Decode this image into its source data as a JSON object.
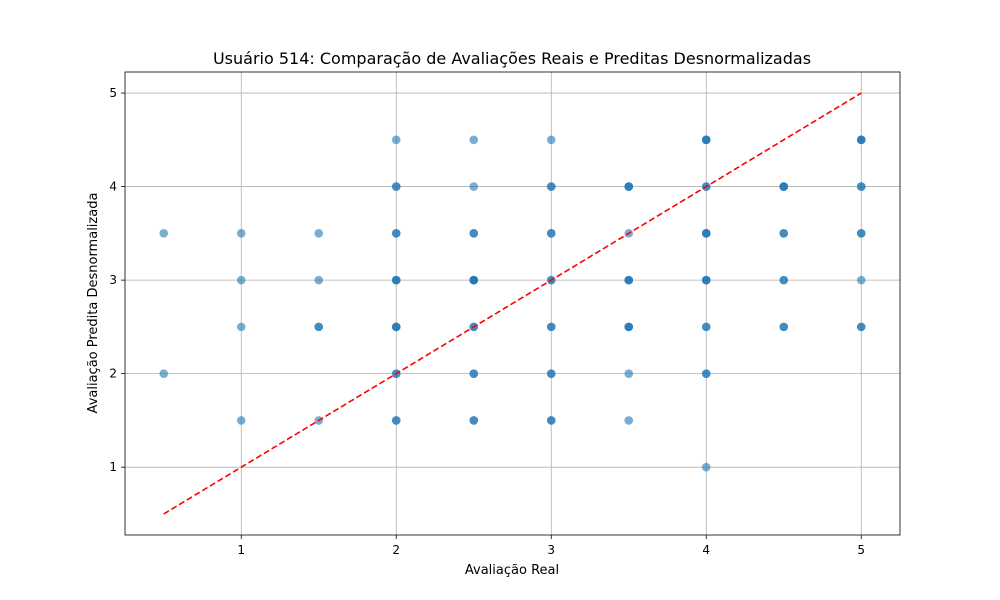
{
  "chart_data": {
    "type": "scatter",
    "title": "Usuário 514: Comparação de Avaliações Reais e Preditas Desnormalizadas",
    "xlabel": "Avaliação Real",
    "ylabel": "Avaliação Predita Desnormalizada",
    "xlim": [
      0.25,
      5.25
    ],
    "ylim": [
      0.275,
      5.225
    ],
    "xticks": [
      1,
      2,
      3,
      4,
      5
    ],
    "yticks": [
      1,
      2,
      3,
      4,
      5
    ],
    "grid": true,
    "colors": {
      "points": "#1f77b4",
      "reference_line": "#ff0000"
    },
    "reference_line": {
      "style": "dashed",
      "x": [
        0.5,
        5
      ],
      "y": [
        0.5,
        5
      ]
    },
    "points": [
      {
        "x": 0.5,
        "y": 3.5
      },
      {
        "x": 0.5,
        "y": 2.0
      },
      {
        "x": 1.0,
        "y": 3.5
      },
      {
        "x": 1.0,
        "y": 3.0
      },
      {
        "x": 1.0,
        "y": 2.5
      },
      {
        "x": 1.0,
        "y": 1.5
      },
      {
        "x": 1.5,
        "y": 3.5
      },
      {
        "x": 1.5,
        "y": 3.0
      },
      {
        "x": 1.5,
        "y": 2.5
      },
      {
        "x": 1.5,
        "y": 2.5
      },
      {
        "x": 1.5,
        "y": 1.5
      },
      {
        "x": 2.0,
        "y": 4.5
      },
      {
        "x": 2.0,
        "y": 4.0
      },
      {
        "x": 2.0,
        "y": 4.0
      },
      {
        "x": 2.0,
        "y": 3.5
      },
      {
        "x": 2.0,
        "y": 3.5
      },
      {
        "x": 2.0,
        "y": 3.0
      },
      {
        "x": 2.0,
        "y": 3.0
      },
      {
        "x": 2.0,
        "y": 3.0
      },
      {
        "x": 2.0,
        "y": 2.5
      },
      {
        "x": 2.0,
        "y": 2.5
      },
      {
        "x": 2.0,
        "y": 2.5
      },
      {
        "x": 2.0,
        "y": 2.0
      },
      {
        "x": 2.0,
        "y": 2.0
      },
      {
        "x": 2.0,
        "y": 1.5
      },
      {
        "x": 2.0,
        "y": 1.5
      },
      {
        "x": 2.5,
        "y": 4.5
      },
      {
        "x": 2.5,
        "y": 4.0
      },
      {
        "x": 2.5,
        "y": 3.5
      },
      {
        "x": 2.5,
        "y": 3.5
      },
      {
        "x": 2.5,
        "y": 3.0
      },
      {
        "x": 2.5,
        "y": 3.0
      },
      {
        "x": 2.5,
        "y": 3.0
      },
      {
        "x": 2.5,
        "y": 3.0
      },
      {
        "x": 2.5,
        "y": 2.5
      },
      {
        "x": 2.5,
        "y": 2.5
      },
      {
        "x": 2.5,
        "y": 2.0
      },
      {
        "x": 2.5,
        "y": 2.0
      },
      {
        "x": 2.5,
        "y": 1.5
      },
      {
        "x": 2.5,
        "y": 1.5
      },
      {
        "x": 3.0,
        "y": 4.5
      },
      {
        "x": 3.0,
        "y": 4.0
      },
      {
        "x": 3.0,
        "y": 4.0
      },
      {
        "x": 3.0,
        "y": 3.5
      },
      {
        "x": 3.0,
        "y": 3.5
      },
      {
        "x": 3.0,
        "y": 3.0
      },
      {
        "x": 3.0,
        "y": 3.0
      },
      {
        "x": 3.0,
        "y": 2.5
      },
      {
        "x": 3.0,
        "y": 2.5
      },
      {
        "x": 3.0,
        "y": 2.0
      },
      {
        "x": 3.0,
        "y": 2.0
      },
      {
        "x": 3.0,
        "y": 1.5
      },
      {
        "x": 3.0,
        "y": 1.5
      },
      {
        "x": 3.5,
        "y": 4.0
      },
      {
        "x": 3.5,
        "y": 4.0
      },
      {
        "x": 3.5,
        "y": 4.0
      },
      {
        "x": 3.5,
        "y": 3.5
      },
      {
        "x": 3.5,
        "y": 3.0
      },
      {
        "x": 3.5,
        "y": 3.0
      },
      {
        "x": 3.5,
        "y": 3.0
      },
      {
        "x": 3.5,
        "y": 2.5
      },
      {
        "x": 3.5,
        "y": 2.5
      },
      {
        "x": 3.5,
        "y": 2.5
      },
      {
        "x": 3.5,
        "y": 2.0
      },
      {
        "x": 3.5,
        "y": 1.5
      },
      {
        "x": 4.0,
        "y": 4.5
      },
      {
        "x": 4.0,
        "y": 4.5
      },
      {
        "x": 4.0,
        "y": 4.5
      },
      {
        "x": 4.0,
        "y": 4.0
      },
      {
        "x": 4.0,
        "y": 4.0
      },
      {
        "x": 4.0,
        "y": 3.5
      },
      {
        "x": 4.0,
        "y": 3.5
      },
      {
        "x": 4.0,
        "y": 3.5
      },
      {
        "x": 4.0,
        "y": 3.0
      },
      {
        "x": 4.0,
        "y": 3.0
      },
      {
        "x": 4.0,
        "y": 3.0
      },
      {
        "x": 4.0,
        "y": 2.5
      },
      {
        "x": 4.0,
        "y": 2.5
      },
      {
        "x": 4.0,
        "y": 2.0
      },
      {
        "x": 4.0,
        "y": 2.0
      },
      {
        "x": 4.0,
        "y": 1.0
      },
      {
        "x": 4.5,
        "y": 4.0
      },
      {
        "x": 4.5,
        "y": 4.0
      },
      {
        "x": 4.5,
        "y": 4.0
      },
      {
        "x": 4.5,
        "y": 3.5
      },
      {
        "x": 4.5,
        "y": 3.5
      },
      {
        "x": 4.5,
        "y": 3.0
      },
      {
        "x": 4.5,
        "y": 3.0
      },
      {
        "x": 4.5,
        "y": 2.5
      },
      {
        "x": 4.5,
        "y": 2.5
      },
      {
        "x": 5.0,
        "y": 4.5
      },
      {
        "x": 5.0,
        "y": 4.5
      },
      {
        "x": 5.0,
        "y": 4.5
      },
      {
        "x": 5.0,
        "y": 4.0
      },
      {
        "x": 5.0,
        "y": 4.0
      },
      {
        "x": 5.0,
        "y": 3.5
      },
      {
        "x": 5.0,
        "y": 3.5
      },
      {
        "x": 5.0,
        "y": 3.0
      },
      {
        "x": 5.0,
        "y": 2.5
      },
      {
        "x": 5.0,
        "y": 2.5
      }
    ]
  }
}
